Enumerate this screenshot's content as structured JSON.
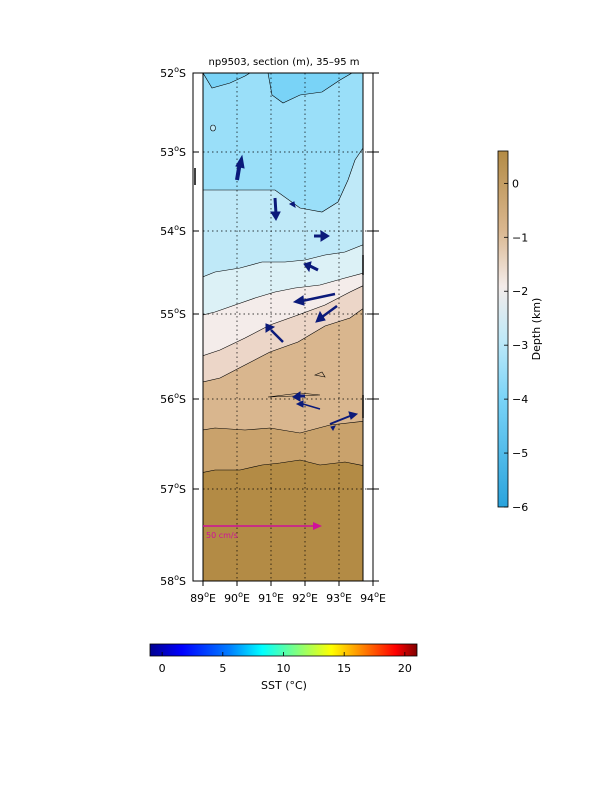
{
  "title": "np9503, section (m), 35–95 m",
  "map": {
    "lat_ticks": [
      {
        "deg": "52",
        "hemi": "S"
      },
      {
        "deg": "53",
        "hemi": "S"
      },
      {
        "deg": "54",
        "hemi": "S"
      },
      {
        "deg": "55",
        "hemi": "S"
      },
      {
        "deg": "56",
        "hemi": "S"
      },
      {
        "deg": "57",
        "hemi": "S"
      },
      {
        "deg": "58",
        "hemi": "S"
      }
    ],
    "lon_ticks": [
      {
        "deg": "89",
        "hemi": "E"
      },
      {
        "deg": "90",
        "hemi": "E"
      },
      {
        "deg": "91",
        "hemi": "E"
      },
      {
        "deg": "92",
        "hemi": "E"
      },
      {
        "deg": "93",
        "hemi": "E"
      },
      {
        "deg": "94",
        "hemi": "E"
      }
    ],
    "lat_range": [
      -58,
      -52
    ],
    "lon_range": [
      89,
      94
    ],
    "grid": "dotted",
    "scale_arrow": {
      "label": "50 cm/s",
      "color": "#d0109a"
    },
    "depth_bands": [
      {
        "depth_km": -4,
        "color": "#79d3f7"
      },
      {
        "depth_km": -3.5,
        "color": "#9adff9"
      },
      {
        "depth_km": -3,
        "color": "#bfe9f8"
      },
      {
        "depth_km": -2.5,
        "color": "#dcf1f6"
      },
      {
        "depth_km": -2,
        "color": "#f4ecea"
      },
      {
        "depth_km": -1.5,
        "color": "#ecd6c8"
      },
      {
        "depth_km": -1,
        "color": "#d9b68e"
      },
      {
        "depth_km": -0.5,
        "color": "#c9a26c"
      },
      {
        "depth_km": 0,
        "color": "#b38b45"
      }
    ],
    "velocity_color": "#0b1a7a"
  },
  "depth_colorbar": {
    "label": "Depth (km)",
    "ticks": [
      "0",
      "−1",
      "−2",
      "−3",
      "−4",
      "−5",
      "−6"
    ],
    "range": [
      -6,
      0.6
    ],
    "colors": [
      "#2aa3dc",
      "#79d3f7",
      "#bfe9f8",
      "#f4ecea",
      "#d9b68e",
      "#b38b45"
    ]
  },
  "sst_colorbar": {
    "label": "SST (°C)",
    "ticks": [
      "0",
      "5",
      "10",
      "15",
      "20"
    ],
    "range": [
      -1,
      21
    ],
    "colors": [
      "#00008f",
      "#0000ff",
      "#0080ff",
      "#00ffff",
      "#80ff80",
      "#ffff00",
      "#ff8000",
      "#ff0000",
      "#800000"
    ]
  }
}
